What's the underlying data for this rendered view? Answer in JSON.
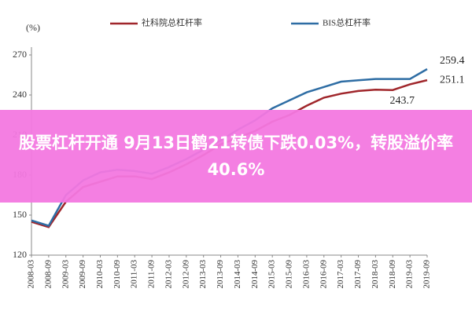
{
  "chart_data": {
    "type": "line",
    "y_label": "(%)",
    "categories": [
      "2008-03",
      "2008-09",
      "2009-03",
      "2009-09",
      "2010-03",
      "2010-09",
      "2011-03",
      "2011-09",
      "2012-03",
      "2012-09",
      "2013-03",
      "2013-09",
      "2014-03",
      "2014-09",
      "2015-03",
      "2015-09",
      "2016-03",
      "2016-09",
      "2017-03",
      "2017-09",
      "2018-03",
      "2018-09",
      "2019-03",
      "2019-09"
    ],
    "series": [
      {
        "name": "社科院总杠杆率",
        "color": "#a0262b",
        "values": [
          145,
          141,
          160,
          171,
          175,
          179,
          179,
          177,
          182,
          188,
          195,
          203,
          208,
          213,
          220,
          225,
          232,
          238,
          241,
          243,
          244,
          243.7,
          248,
          251.1
        ],
        "labels_at": [
          21,
          23
        ]
      },
      {
        "name": "BIS总杠杆率",
        "color": "#2e6da4",
        "values": [
          146,
          142,
          165,
          176,
          182,
          184,
          183,
          181,
          186,
          192,
          199,
          206,
          214,
          221,
          230,
          236,
          242,
          246,
          250,
          251,
          252,
          252,
          252,
          259.4
        ],
        "labels_at": [
          23
        ]
      }
    ],
    "ylim": [
      120,
      270
    ],
    "yticks": [
      120,
      150,
      180,
      210,
      240,
      270
    ],
    "grid": false
  },
  "banner": {
    "text": "股票杠杆开通 9月13日鹤21转债下跌0.03%，转股溢价率40.6%"
  }
}
